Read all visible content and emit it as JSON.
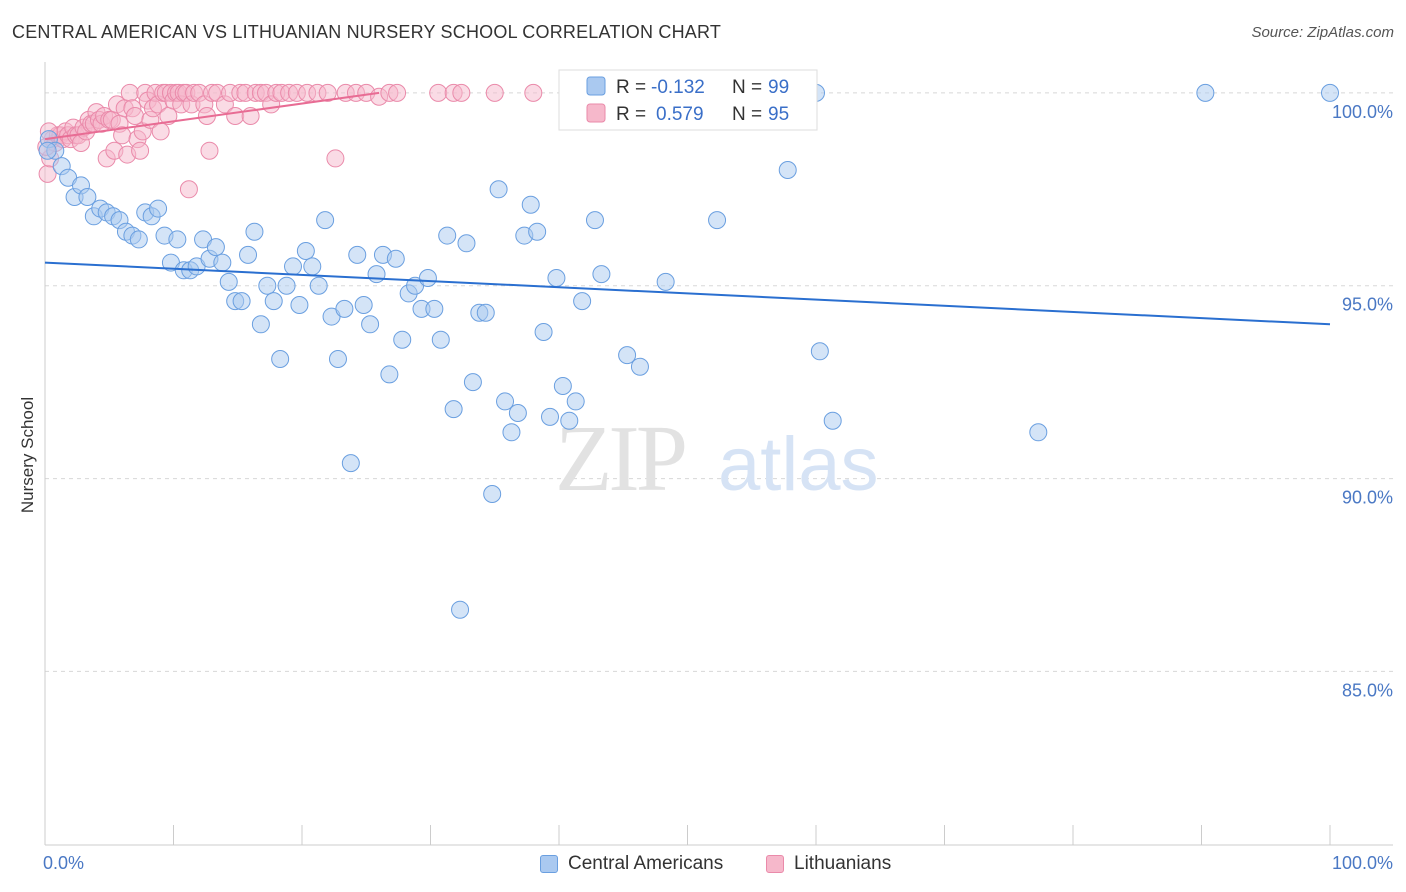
{
  "header": {
    "title": "CENTRAL AMERICAN VS LITHUANIAN NURSERY SCHOOL CORRELATION CHART",
    "source": "Source: ZipAtlas.com"
  },
  "watermark": {
    "zip": "ZIP",
    "atlas": "atlas"
  },
  "colors": {
    "blue_fill": "#aac9f0",
    "blue_stroke": "#6a9fe0",
    "blue_line": "#2a6fd0",
    "pink_fill": "#f6b8cb",
    "pink_stroke": "#ea8aaa",
    "pink_line": "#e86c94",
    "axis_text": "#4a78c4",
    "grid": "#d8d8d8"
  },
  "stats_box": {
    "rows": [
      {
        "r_label": "R = ",
        "r_value": "-0.132",
        "n_label": "N = ",
        "n_value": "99"
      },
      {
        "r_label": "R = ",
        "r_value": "0.579",
        "n_label": "N = ",
        "n_value": "95"
      }
    ]
  },
  "bottom_legend": {
    "items": [
      {
        "label": "Central Americans"
      },
      {
        "label": "Lithuanians"
      }
    ]
  },
  "chart_data": {
    "type": "scatter",
    "title": "CENTRAL AMERICAN VS LITHUANIAN NURSERY SCHOOL CORRELATION CHART",
    "xlabel": "",
    "ylabel": "Nursery School",
    "xlim": [
      0,
      100
    ],
    "ylim": [
      80.5,
      100.8
    ],
    "x_tick_labels": [
      "0.0%",
      "100.0%"
    ],
    "y_ticks": [
      {
        "value": 100,
        "label": "100.0%"
      },
      {
        "value": 95,
        "label": "95.0%"
      },
      {
        "value": 90,
        "label": "90.0%"
      },
      {
        "value": 85,
        "label": "85.0%"
      }
    ],
    "grid": true,
    "legend_position": "bottom-center",
    "series": [
      {
        "name": "Central Americans",
        "r": -0.132,
        "n": 99,
        "trend": {
          "x": [
            0,
            100
          ],
          "y": [
            95.6,
            94.0
          ]
        },
        "points": [
          [
            0.3,
            98.8
          ],
          [
            0.8,
            98.5
          ],
          [
            1.3,
            98.1
          ],
          [
            1.8,
            97.8
          ],
          [
            2.3,
            97.3
          ],
          [
            2.8,
            97.6
          ],
          [
            3.3,
            97.3
          ],
          [
            3.8,
            96.8
          ],
          [
            4.3,
            97.0
          ],
          [
            4.8,
            96.9
          ],
          [
            5.3,
            96.8
          ],
          [
            5.8,
            96.7
          ],
          [
            6.3,
            96.4
          ],
          [
            6.8,
            96.3
          ],
          [
            7.3,
            96.2
          ],
          [
            7.8,
            96.9
          ],
          [
            8.3,
            96.8
          ],
          [
            8.8,
            97.0
          ],
          [
            9.3,
            96.3
          ],
          [
            9.8,
            95.6
          ],
          [
            10.3,
            96.2
          ],
          [
            10.8,
            95.4
          ],
          [
            11.3,
            95.4
          ],
          [
            11.8,
            95.5
          ],
          [
            12.3,
            96.2
          ],
          [
            12.8,
            95.7
          ],
          [
            13.3,
            96.0
          ],
          [
            13.8,
            95.6
          ],
          [
            14.3,
            95.1
          ],
          [
            14.8,
            94.6
          ],
          [
            15.3,
            94.6
          ],
          [
            15.8,
            95.8
          ],
          [
            16.3,
            96.4
          ],
          [
            16.8,
            94.0
          ],
          [
            17.3,
            95.0
          ],
          [
            17.8,
            94.6
          ],
          [
            18.3,
            93.1
          ],
          [
            18.8,
            95.0
          ],
          [
            19.3,
            95.5
          ],
          [
            19.8,
            94.5
          ],
          [
            20.3,
            95.9
          ],
          [
            20.8,
            95.5
          ],
          [
            21.3,
            95.0
          ],
          [
            21.8,
            96.7
          ],
          [
            22.3,
            94.2
          ],
          [
            22.8,
            93.1
          ],
          [
            23.3,
            94.4
          ],
          [
            23.8,
            90.4
          ],
          [
            24.3,
            95.8
          ],
          [
            24.8,
            94.5
          ],
          [
            25.3,
            94.0
          ],
          [
            25.8,
            95.3
          ],
          [
            26.3,
            95.8
          ],
          [
            26.8,
            92.7
          ],
          [
            27.3,
            95.7
          ],
          [
            27.8,
            93.6
          ],
          [
            28.3,
            94.8
          ],
          [
            28.8,
            95.0
          ],
          [
            29.3,
            94.4
          ],
          [
            29.8,
            95.2
          ],
          [
            30.3,
            94.4
          ],
          [
            30.8,
            93.6
          ],
          [
            31.3,
            96.3
          ],
          [
            31.8,
            91.8
          ],
          [
            32.3,
            86.6
          ],
          [
            32.8,
            96.1
          ],
          [
            33.3,
            92.5
          ],
          [
            33.8,
            94.3
          ],
          [
            34.3,
            94.3
          ],
          [
            34.8,
            89.6
          ],
          [
            35.3,
            97.5
          ],
          [
            35.8,
            92.0
          ],
          [
            36.3,
            91.2
          ],
          [
            36.8,
            91.7
          ],
          [
            37.3,
            96.3
          ],
          [
            37.8,
            97.1
          ],
          [
            38.3,
            96.4
          ],
          [
            38.8,
            93.8
          ],
          [
            39.3,
            91.6
          ],
          [
            39.8,
            95.2
          ],
          [
            40.3,
            92.4
          ],
          [
            40.8,
            91.5
          ],
          [
            41.3,
            92.0
          ],
          [
            41.8,
            94.6
          ],
          [
            42.8,
            96.7
          ],
          [
            43.3,
            95.3
          ],
          [
            45.3,
            93.2
          ],
          [
            46.3,
            92.9
          ],
          [
            48.3,
            95.1
          ],
          [
            49.8,
            100.0
          ],
          [
            52.3,
            96.7
          ],
          [
            57.8,
            98.0
          ],
          [
            60.0,
            100.0
          ],
          [
            60.3,
            93.3
          ],
          [
            61.3,
            91.5
          ],
          [
            77.3,
            91.2
          ],
          [
            90.3,
            100.0
          ],
          [
            100.0,
            100.0
          ],
          [
            0.2,
            98.5
          ]
        ]
      },
      {
        "name": "Lithuanians",
        "r": 0.579,
        "n": 95,
        "trend": {
          "x": [
            0,
            26
          ],
          "y": [
            98.8,
            100.0
          ]
        },
        "points": [
          [
            0.2,
            97.9
          ],
          [
            0.4,
            98.3
          ],
          [
            0.6,
            98.8
          ],
          [
            0.8,
            98.7
          ],
          [
            1.0,
            98.9
          ],
          [
            1.2,
            98.9
          ],
          [
            1.4,
            98.8
          ],
          [
            1.6,
            99.0
          ],
          [
            1.8,
            98.9
          ],
          [
            2.0,
            98.8
          ],
          [
            2.2,
            99.1
          ],
          [
            2.4,
            98.9
          ],
          [
            2.6,
            98.9
          ],
          [
            2.8,
            98.7
          ],
          [
            3.0,
            99.1
          ],
          [
            3.2,
            99.0
          ],
          [
            3.4,
            99.3
          ],
          [
            3.6,
            99.2
          ],
          [
            3.8,
            99.2
          ],
          [
            4.0,
            99.5
          ],
          [
            4.2,
            99.3
          ],
          [
            4.4,
            99.2
          ],
          [
            4.6,
            99.4
          ],
          [
            4.8,
            98.3
          ],
          [
            5.0,
            99.3
          ],
          [
            5.2,
            99.3
          ],
          [
            5.4,
            98.5
          ],
          [
            5.6,
            99.7
          ],
          [
            5.8,
            99.2
          ],
          [
            6.0,
            98.9
          ],
          [
            6.2,
            99.6
          ],
          [
            6.4,
            98.4
          ],
          [
            6.6,
            100.0
          ],
          [
            6.8,
            99.6
          ],
          [
            7.0,
            99.4
          ],
          [
            7.2,
            98.8
          ],
          [
            7.4,
            98.5
          ],
          [
            7.6,
            99.0
          ],
          [
            7.8,
            100.0
          ],
          [
            8.0,
            99.8
          ],
          [
            8.2,
            99.3
          ],
          [
            8.4,
            99.6
          ],
          [
            8.6,
            100.0
          ],
          [
            8.8,
            99.7
          ],
          [
            9.0,
            99.0
          ],
          [
            9.2,
            100.0
          ],
          [
            9.4,
            100.0
          ],
          [
            9.6,
            99.4
          ],
          [
            9.8,
            100.0
          ],
          [
            10.0,
            99.8
          ],
          [
            10.2,
            100.0
          ],
          [
            10.4,
            100.0
          ],
          [
            10.6,
            99.7
          ],
          [
            10.8,
            100.0
          ],
          [
            11.0,
            100.0
          ],
          [
            11.2,
            97.5
          ],
          [
            11.4,
            99.7
          ],
          [
            11.6,
            100.0
          ],
          [
            12.0,
            100.0
          ],
          [
            12.4,
            99.7
          ],
          [
            12.6,
            99.4
          ],
          [
            12.8,
            98.5
          ],
          [
            13.0,
            100.0
          ],
          [
            13.4,
            100.0
          ],
          [
            14.0,
            99.7
          ],
          [
            14.4,
            100.0
          ],
          [
            14.8,
            99.4
          ],
          [
            15.2,
            100.0
          ],
          [
            15.6,
            100.0
          ],
          [
            16.0,
            99.4
          ],
          [
            16.4,
            100.0
          ],
          [
            16.8,
            100.0
          ],
          [
            17.2,
            100.0
          ],
          [
            17.6,
            99.7
          ],
          [
            18.0,
            100.0
          ],
          [
            18.4,
            100.0
          ],
          [
            19.0,
            100.0
          ],
          [
            19.6,
            100.0
          ],
          [
            20.4,
            100.0
          ],
          [
            21.2,
            100.0
          ],
          [
            22.0,
            100.0
          ],
          [
            22.6,
            98.3
          ],
          [
            23.4,
            100.0
          ],
          [
            24.2,
            100.0
          ],
          [
            25.0,
            100.0
          ],
          [
            26.0,
            99.9
          ],
          [
            26.8,
            100.0
          ],
          [
            27.4,
            100.0
          ],
          [
            30.6,
            100.0
          ],
          [
            31.8,
            100.0
          ],
          [
            32.4,
            100.0
          ],
          [
            35.0,
            100.0
          ],
          [
            38.0,
            100.0
          ],
          [
            0.1,
            98.6
          ],
          [
            0.3,
            99.0
          ]
        ]
      }
    ]
  }
}
